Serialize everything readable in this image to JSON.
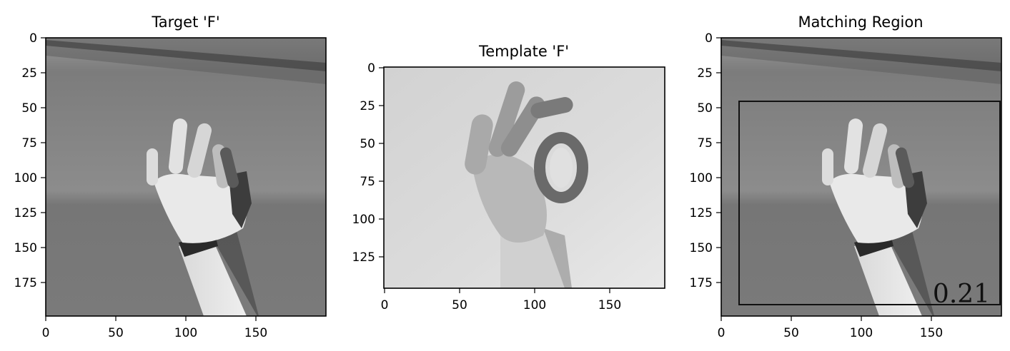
{
  "panels": [
    {
      "title": "Target 'F'",
      "x_ticks": [
        "0",
        "50",
        "100",
        "150"
      ],
      "y_ticks": [
        "0",
        "25",
        "50",
        "75",
        "100",
        "125",
        "150",
        "175"
      ]
    },
    {
      "title": "Template 'F'",
      "x_ticks": [
        "0",
        "50",
        "100",
        "150"
      ],
      "y_ticks": [
        "0",
        "25",
        "50",
        "75",
        "100",
        "125"
      ]
    },
    {
      "title": "Matching Region",
      "x_ticks": [
        "0",
        "50",
        "100",
        "150"
      ],
      "y_ticks": [
        "0",
        "25",
        "50",
        "75",
        "100",
        "125",
        "150",
        "175"
      ],
      "score_label": "0.21"
    }
  ],
  "colors": {
    "background": "#ffffff",
    "image_wall_light": "#8a8a8a",
    "image_wall_dark": "#6e6e6e",
    "template_background": "#d8d8d8",
    "hand_skin": "#e6e6e6",
    "hand_shadow": "#3a3a3a"
  }
}
